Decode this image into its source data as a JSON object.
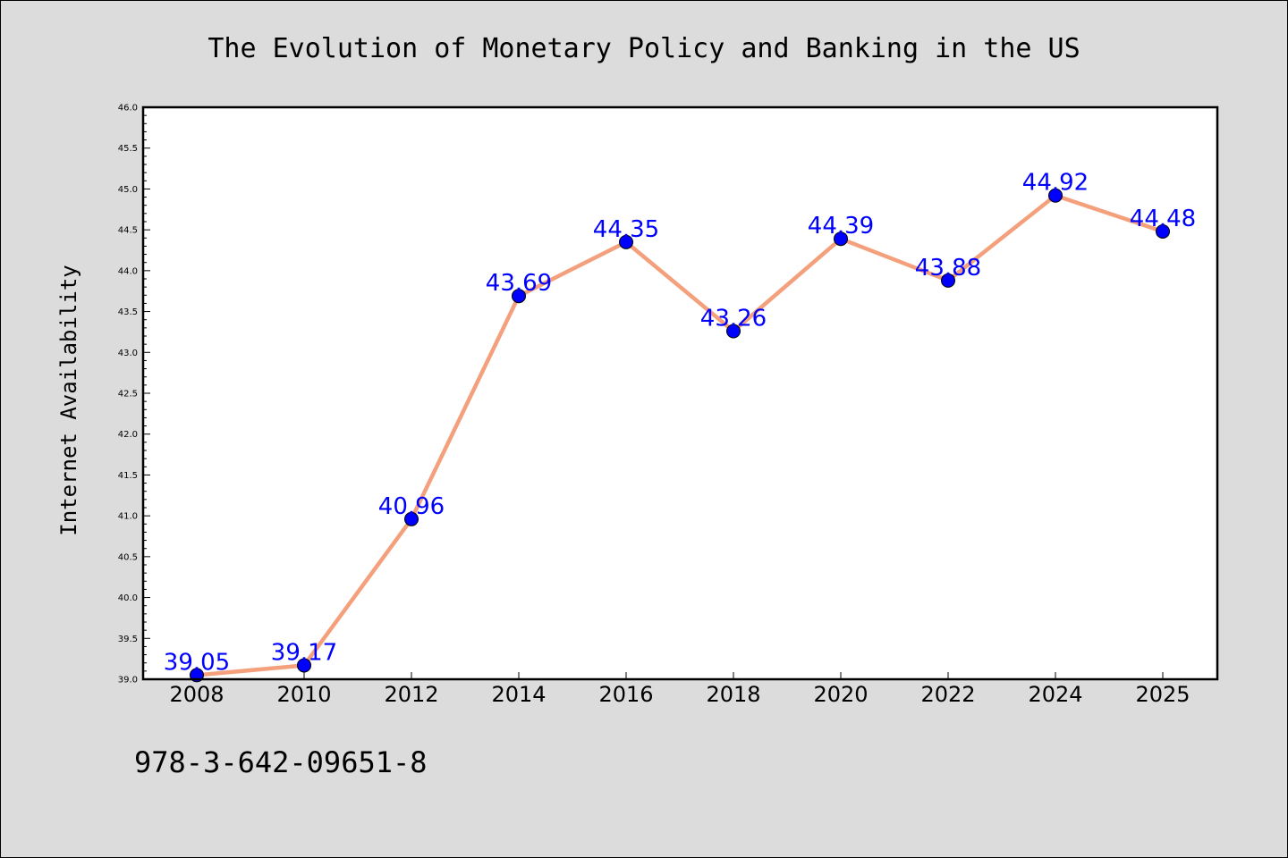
{
  "chart_data": {
    "type": "line",
    "title": "The Evolution of Monetary Policy and Banking in the US",
    "xlabel": "",
    "ylabel": "Internet Availability",
    "categories": [
      "2008",
      "2010",
      "2012",
      "2014",
      "2016",
      "2018",
      "2020",
      "2022",
      "2024",
      "2025"
    ],
    "values": [
      39.05,
      39.17,
      40.96,
      43.69,
      44.35,
      43.26,
      44.39,
      43.88,
      44.92,
      44.48
    ],
    "data_labels": [
      "39.05",
      "39.17",
      "40.96",
      "43.69",
      "44.35",
      "43.26",
      "44.39",
      "43.88",
      "44.92",
      "44.48"
    ],
    "ylim": [
      39.0,
      46.0
    ],
    "yticks": [
      "39.0",
      "39.5",
      "40.0",
      "40.5",
      "41.0",
      "41.5",
      "42.0",
      "42.5",
      "43.0",
      "43.5",
      "44.0",
      "44.5",
      "45.0",
      "45.5",
      "46.0"
    ],
    "grid": false,
    "legend": "none",
    "line_color": "#f4a07c",
    "marker_color": "#0000ff",
    "label_color": "#0000ff"
  },
  "footer": {
    "isbn": "978-3-642-09651-8"
  }
}
